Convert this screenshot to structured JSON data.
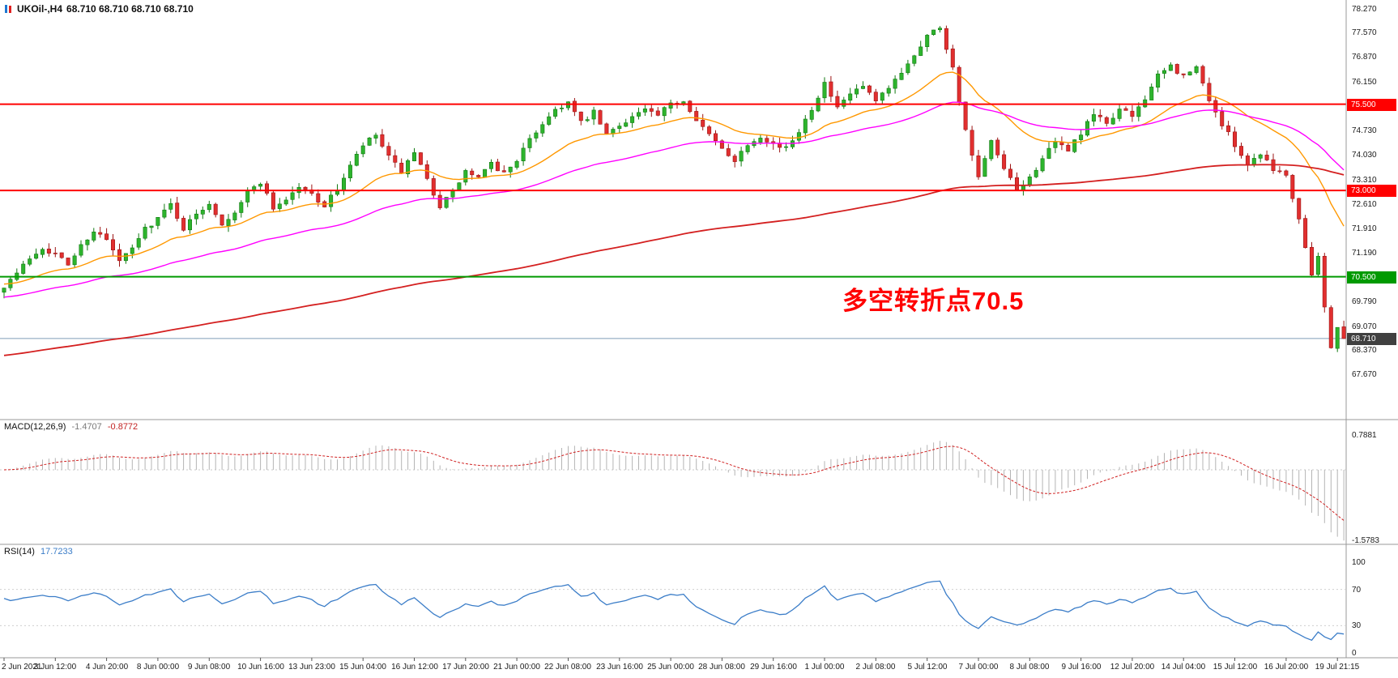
{
  "header": {
    "symbol": "UKOil-,H4",
    "ohlc": "68.710 68.710 68.710 68.710"
  },
  "annotation": {
    "text": "多空转折点70.5",
    "color": "#ff0000"
  },
  "colors": {
    "background": "#ffffff",
    "up_candle": "#2db42d",
    "up_candle_border": "#117a11",
    "down_candle": "#e12f2f",
    "down_candle_border": "#9c1414",
    "ma_fast": "#ff9800",
    "ma_mid": "#ff00ff",
    "ma_slow": "#d42020",
    "resistance_line": "#ff0000",
    "support_line": "#009a00",
    "current_price_line": "#7f9db9",
    "current_price_tag_bg": "#404040",
    "macd_histogram": "#b4b4b4",
    "macd_signal": "#d02020",
    "rsi_line": "#3b7dc8",
    "separator": "#989898",
    "axis_text": "#1a1a1a"
  },
  "main_panel": {
    "price_axis_labels": [
      "78.270",
      "77.570",
      "76.870",
      "76.150",
      "74.730",
      "74.030",
      "73.310",
      "72.610",
      "71.910",
      "71.190",
      "69.790",
      "69.070",
      "68.370",
      "67.670"
    ],
    "h_lines": [
      {
        "price": 75.5,
        "tag": "75.500",
        "color": "#ff0000"
      },
      {
        "price": 73.0,
        "tag": "73.000",
        "color": "#ff0000"
      },
      {
        "price": 70.5,
        "tag": "70.500",
        "color": "#009a00"
      }
    ],
    "current_price": {
      "price": 68.71,
      "tag": "68.710"
    }
  },
  "indicators": {
    "macd": {
      "label": "MACD(12,26,9)",
      "value_main": "-1.4707",
      "value_signal": "-0.8772",
      "fast_period": 12,
      "slow_period": 26,
      "signal_period": 9,
      "axis": [
        {
          "text": "0.7881",
          "value": 0.7881
        },
        {
          "text": "-1.5783",
          "value": -1.5783
        }
      ]
    },
    "rsi": {
      "label": "RSI(14)",
      "value": "17.7233",
      "period": 14,
      "levels": [
        70,
        30
      ],
      "axis": [
        {
          "text": "100",
          "value": 100
        },
        {
          "text": "70",
          "value": 70
        },
        {
          "text": "30",
          "value": 30
        },
        {
          "text": "0",
          "value": 0
        }
      ]
    }
  },
  "time_axis": {
    "candles_per_label": 8,
    "labels": [
      "2 Jun 2021",
      "3 Jun 12:00",
      "4 Jun 20:00",
      "8 Jun 00:00",
      "9 Jun 08:00",
      "10 Jun 16:00",
      "13 Jun 23:00",
      "15 Jun 04:00",
      "16 Jun 12:00",
      "17 Jun 20:00",
      "21 Jun 00:00",
      "22 Jun 08:00",
      "23 Jun 16:00",
      "25 Jun 00:00",
      "28 Jun 08:00",
      "29 Jun 16:00",
      "1 Jul 00:00",
      "2 Jul 08:00",
      "5 Jul 12:00",
      "7 Jul 00:00",
      "8 Jul 08:00",
      "9 Jul 16:00",
      "12 Jul 20:00",
      "14 Jul 04:00",
      "15 Jul 12:00",
      "16 Jul 20:00",
      "19 Jul 21:15"
    ]
  },
  "chart_data": {
    "type": "candlestick",
    "title": "UKOil- H4 candlestick chart with MACD and RSI",
    "symbol": "UKOil-",
    "timeframe": "H4",
    "ylim": [
      66.2,
      78.5
    ],
    "visible_price_labels_range": [
      67.67,
      78.27
    ],
    "candle_count": 210,
    "current_price": 68.71,
    "session_high": 77.84,
    "price_anchors": [
      [
        0,
        70.25
      ],
      [
        2,
        70.6
      ],
      [
        4,
        71.05
      ],
      [
        6,
        71.35
      ],
      [
        8,
        71.15
      ],
      [
        10,
        70.85
      ],
      [
        12,
        71.4
      ],
      [
        14,
        71.85
      ],
      [
        16,
        71.55
      ],
      [
        18,
        70.95
      ],
      [
        20,
        71.3
      ],
      [
        22,
        71.9
      ],
      [
        24,
        72.2
      ],
      [
        26,
        72.6
      ],
      [
        28,
        71.9
      ],
      [
        30,
        72.3
      ],
      [
        32,
        72.65
      ],
      [
        34,
        72.05
      ],
      [
        36,
        72.4
      ],
      [
        38,
        72.95
      ],
      [
        40,
        73.25
      ],
      [
        42,
        72.5
      ],
      [
        44,
        72.75
      ],
      [
        46,
        73.1
      ],
      [
        48,
        72.9
      ],
      [
        50,
        72.55
      ],
      [
        52,
        73.05
      ],
      [
        54,
        73.7
      ],
      [
        56,
        74.3
      ],
      [
        58,
        74.6
      ],
      [
        60,
        73.95
      ],
      [
        62,
        73.55
      ],
      [
        64,
        74.05
      ],
      [
        66,
        73.3
      ],
      [
        68,
        72.55
      ],
      [
        70,
        72.95
      ],
      [
        72,
        73.55
      ],
      [
        74,
        73.35
      ],
      [
        76,
        73.75
      ],
      [
        78,
        73.5
      ],
      [
        80,
        73.9
      ],
      [
        82,
        74.45
      ],
      [
        84,
        74.95
      ],
      [
        86,
        75.35
      ],
      [
        88,
        75.55
      ],
      [
        90,
        74.95
      ],
      [
        92,
        75.25
      ],
      [
        94,
        74.6
      ],
      [
        96,
        74.9
      ],
      [
        98,
        75.15
      ],
      [
        100,
        75.35
      ],
      [
        102,
        75.15
      ],
      [
        104,
        75.5
      ],
      [
        106,
        75.6
      ],
      [
        108,
        75.1
      ],
      [
        110,
        74.6
      ],
      [
        112,
        74.2
      ],
      [
        114,
        73.9
      ],
      [
        116,
        74.35
      ],
      [
        118,
        74.6
      ],
      [
        120,
        74.35
      ],
      [
        122,
        74.2
      ],
      [
        124,
        74.75
      ],
      [
        126,
        75.4
      ],
      [
        128,
        76.1
      ],
      [
        130,
        75.35
      ],
      [
        132,
        75.8
      ],
      [
        134,
        76.0
      ],
      [
        136,
        75.55
      ],
      [
        138,
        75.95
      ],
      [
        140,
        76.45
      ],
      [
        142,
        76.95
      ],
      [
        144,
        77.5
      ],
      [
        146,
        77.75
      ],
      [
        148,
        76.55
      ],
      [
        150,
        74.7
      ],
      [
        152,
        73.35
      ],
      [
        154,
        74.4
      ],
      [
        156,
        73.6
      ],
      [
        158,
        73.0
      ],
      [
        160,
        73.35
      ],
      [
        162,
        73.95
      ],
      [
        164,
        74.35
      ],
      [
        166,
        74.2
      ],
      [
        168,
        74.65
      ],
      [
        170,
        75.2
      ],
      [
        172,
        74.95
      ],
      [
        174,
        75.35
      ],
      [
        176,
        75.15
      ],
      [
        178,
        75.7
      ],
      [
        180,
        76.3
      ],
      [
        182,
        76.6
      ],
      [
        184,
        76.3
      ],
      [
        186,
        76.55
      ],
      [
        188,
        75.65
      ],
      [
        190,
        74.9
      ],
      [
        192,
        74.35
      ],
      [
        194,
        73.75
      ],
      [
        196,
        74.1
      ],
      [
        198,
        73.65
      ],
      [
        200,
        73.45
      ],
      [
        202,
        72.2
      ],
      [
        204,
        70.6
      ],
      [
        205,
        71.1
      ],
      [
        206,
        69.6
      ],
      [
        207,
        68.5
      ],
      [
        208,
        69.05
      ],
      [
        209,
        68.71
      ]
    ],
    "moving_averages": [
      {
        "name": "fast-ma",
        "period": 21,
        "seed": 70.3,
        "color": "#ff9800"
      },
      {
        "name": "mid-ma",
        "period": 55,
        "seed": 69.9,
        "color": "#ff00ff"
      },
      {
        "name": "slow-ma",
        "period": 200,
        "seed": 68.2,
        "color": "#d42020"
      }
    ],
    "noise_seed": 7,
    "noise_amplitude": 0.16,
    "wick_amplitude": 0.18,
    "legend_position": "none",
    "grid": "off"
  }
}
